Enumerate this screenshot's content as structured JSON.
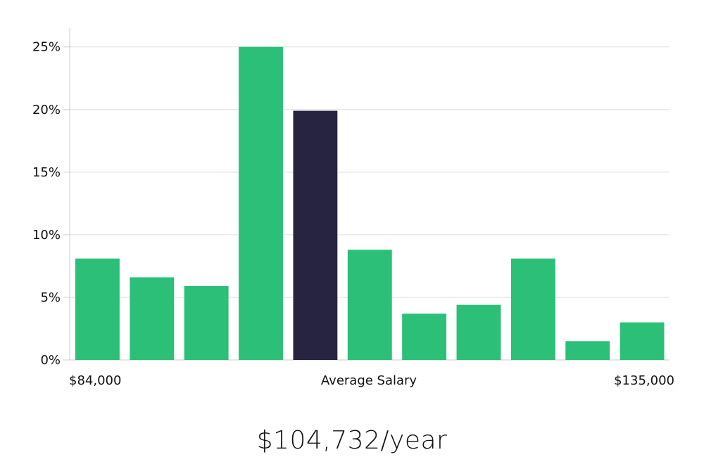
{
  "chart_data": {
    "type": "bar",
    "values": [
      8.1,
      6.6,
      5.9,
      25.0,
      19.9,
      8.8,
      3.7,
      4.4,
      8.1,
      1.5,
      3.0
    ],
    "highlight_index": 4,
    "ylim": [
      0,
      26.5
    ],
    "yticks": [
      0,
      5,
      10,
      15,
      20,
      25
    ],
    "ytick_labels": [
      "0%",
      "5%",
      "10%",
      "15%",
      "20%",
      "25%"
    ],
    "x_min_label": "$84,000",
    "x_center_label": "Average Salary",
    "x_max_label": "$135,000",
    "grid": true,
    "colors": {
      "bar": "#2bbf78",
      "highlight": "#272442",
      "grid": "#dddddd",
      "axis": "#cccccc"
    }
  },
  "summary": {
    "salary": "$104,732/year"
  }
}
